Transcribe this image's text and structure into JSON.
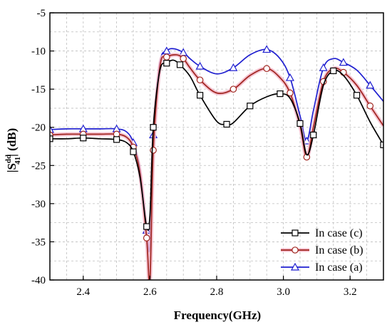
{
  "chart_data": {
    "type": "line",
    "title": "",
    "xlabel": "Frequency(GHz)",
    "ylabel": "|S41dd| (dB)",
    "ylabel_parts": {
      "prefix": "|S",
      "sup": "dd",
      "sub": "41",
      "suffix": "| (dB)"
    },
    "xlim": [
      2.3,
      3.3
    ],
    "ylim": [
      -40,
      -5
    ],
    "xticks": [
      2.4,
      2.6,
      2.8,
      3.0,
      3.2
    ],
    "xtick_labels": [
      "2.4",
      "2.6",
      "2.8",
      "3.0",
      "3.2"
    ],
    "yticks": [
      -40,
      -35,
      -30,
      -25,
      -20,
      -15,
      -10,
      -5
    ],
    "ytick_labels": [
      "-40",
      "-35",
      "-30",
      "-25",
      "-20",
      "-15",
      "-10",
      "-5"
    ],
    "grid": true,
    "legend_position": "bottom-right",
    "series": [
      {
        "name": "In case (c)",
        "color": "#000000",
        "marker": "square",
        "x": [
          2.3,
          2.35,
          2.4,
          2.45,
          2.5,
          2.53,
          2.55,
          2.57,
          2.59,
          2.6,
          2.61,
          2.63,
          2.65,
          2.67,
          2.69,
          2.72,
          2.75,
          2.8,
          2.83,
          2.85,
          2.9,
          2.95,
          2.99,
          3.02,
          3.05,
          3.07,
          3.09,
          3.12,
          3.15,
          3.18,
          3.22,
          3.26,
          3.3
        ],
        "y": [
          -21.5,
          -21.5,
          -21.4,
          -21.5,
          -21.6,
          -22.0,
          -23.2,
          -26.5,
          -33.0,
          -31.5,
          -20.0,
          -12.5,
          -11.6,
          -11.2,
          -11.8,
          -13.3,
          -15.8,
          -19.2,
          -19.6,
          -19.4,
          -17.2,
          -16.0,
          -15.6,
          -16.2,
          -19.5,
          -23.6,
          -21.0,
          -14.5,
          -12.6,
          -13.2,
          -15.8,
          -19.3,
          -22.3
        ]
      },
      {
        "name": "In case (b)",
        "color": "#a0251f",
        "marker": "circle",
        "x": [
          2.3,
          2.35,
          2.4,
          2.45,
          2.5,
          2.53,
          2.55,
          2.57,
          2.59,
          2.6,
          2.61,
          2.63,
          2.65,
          2.68,
          2.7,
          2.72,
          2.75,
          2.8,
          2.85,
          2.9,
          2.95,
          2.99,
          3.02,
          3.05,
          3.07,
          3.09,
          3.12,
          3.15,
          3.18,
          3.22,
          3.26,
          3.3
        ],
        "y": [
          -21.0,
          -20.9,
          -20.9,
          -20.9,
          -20.9,
          -21.3,
          -22.6,
          -26.0,
          -34.5,
          -40.0,
          -23.0,
          -12.0,
          -10.8,
          -10.5,
          -11.0,
          -12.2,
          -13.8,
          -15.5,
          -15.0,
          -13.2,
          -12.3,
          -13.5,
          -15.5,
          -19.8,
          -23.9,
          -20.0,
          -14.0,
          -12.3,
          -12.8,
          -14.5,
          -17.2,
          -19.8
        ]
      },
      {
        "name": "In case (a)",
        "color": "#1f1fd0",
        "marker": "triangle",
        "x": [
          2.3,
          2.35,
          2.4,
          2.45,
          2.5,
          2.53,
          2.55,
          2.57,
          2.59,
          2.6,
          2.61,
          2.63,
          2.65,
          2.67,
          2.7,
          2.72,
          2.75,
          2.8,
          2.85,
          2.9,
          2.95,
          2.99,
          3.02,
          3.05,
          3.07,
          3.09,
          3.12,
          3.15,
          3.18,
          3.22,
          3.26,
          3.3
        ],
        "y": [
          -20.3,
          -20.2,
          -20.2,
          -20.2,
          -20.2,
          -20.6,
          -22.0,
          -25.5,
          -33.5,
          -35.5,
          -21.0,
          -11.5,
          -10.0,
          -9.7,
          -10.2,
          -11.0,
          -12.0,
          -13.0,
          -12.2,
          -10.5,
          -9.8,
          -11.0,
          -13.5,
          -18.5,
          -21.8,
          -17.8,
          -12.2,
          -11.0,
          -11.5,
          -12.5,
          -14.5,
          -16.6
        ]
      }
    ]
  }
}
